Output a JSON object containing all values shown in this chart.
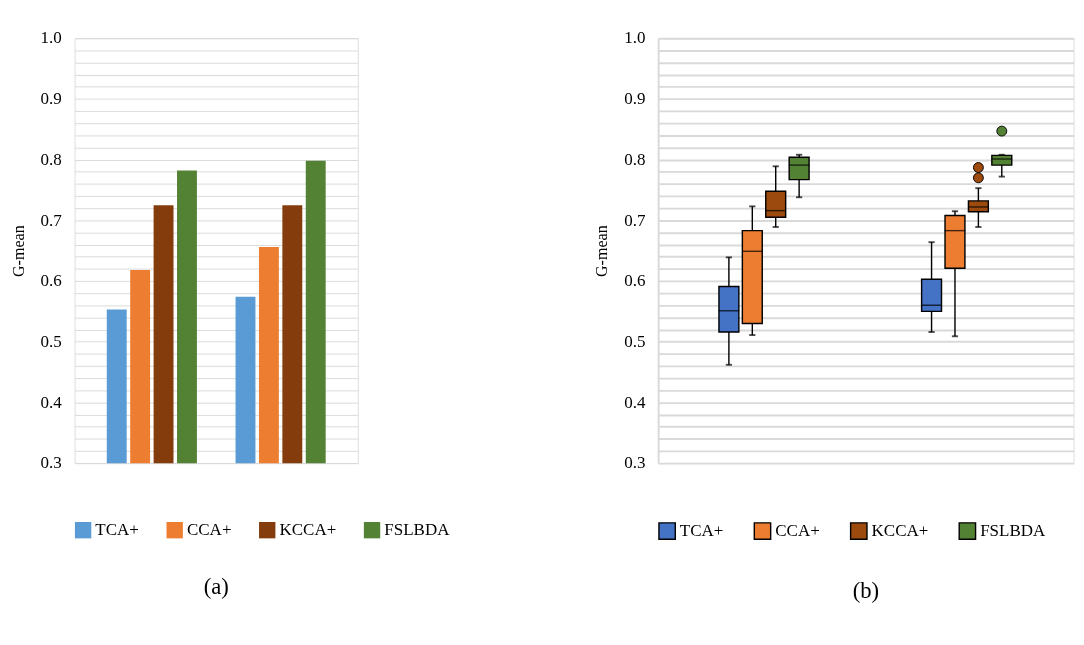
{
  "chart_data": [
    {
      "type": "bar",
      "categories": [
        null,
        null
      ],
      "ylabel": "G-mean",
      "ylim": [
        0.3,
        1.0
      ],
      "yticks": [
        0.3,
        {
          "value": 0.32,
          "label": null
        },
        {
          "value": 0.34,
          "label": null
        },
        {
          "value": 0.36,
          "label": null
        },
        {
          "value": 0.38,
          "label": null
        },
        0.4,
        {
          "value": 0.42,
          "label": null
        },
        {
          "value": 0.44,
          "label": null
        },
        {
          "value": 0.46,
          "label": null
        },
        {
          "value": 0.48,
          "label": null
        },
        0.5,
        {
          "value": 0.52,
          "label": null
        },
        {
          "value": 0.54,
          "label": null
        },
        {
          "value": 0.56,
          "label": null
        },
        {
          "value": 0.58,
          "label": null
        },
        0.6,
        {
          "value": 0.62,
          "label": null
        },
        {
          "value": 0.64,
          "label": null
        },
        {
          "value": 0.66,
          "label": null
        },
        {
          "value": 0.68,
          "label": null
        },
        0.7,
        {
          "value": 0.72,
          "label": null
        },
        {
          "value": 0.74,
          "label": null
        },
        {
          "value": 0.76,
          "label": null
        },
        {
          "value": 0.78,
          "label": null
        },
        0.8,
        {
          "value": 0.82,
          "label": null
        },
        {
          "value": 0.84,
          "label": null
        },
        {
          "value": 0.86,
          "label": null
        },
        {
          "value": 0.88,
          "label": null
        },
        0.9,
        {
          "value": 0.92,
          "label": null
        },
        {
          "value": 0.94,
          "label": null
        },
        {
          "value": 0.96,
          "label": null
        },
        {
          "value": 0.98,
          "label": null
        },
        {
          "value": 1.0,
          "label": "1.0"
        }
      ],
      "grid": "y",
      "legend": "bottom",
      "annotations": [
        "(a)"
      ],
      "series": [
        {
          "name": "TCA+",
          "color": "#5b9bd5",
          "values": [
            0.553,
            0.574
          ]
        },
        {
          "name": "CCA+",
          "color": "#ed7d31",
          "values": [
            0.618,
            0.656
          ]
        },
        {
          "name": "KCCA+",
          "color": "#843c0c",
          "values": [
            0.725,
            0.725
          ]
        },
        {
          "name": "FSLBDA",
          "color": "#548235",
          "values": [
            0.782,
            0.798
          ]
        }
      ]
    },
    {
      "type": "box",
      "categories": [
        null,
        null
      ],
      "ylabel": "G-mean",
      "ylim": [
        0.3,
        1.0
      ],
      "yticks": [
        0.3,
        {
          "value": 0.32,
          "label": null
        },
        {
          "value": 0.34,
          "label": null
        },
        {
          "value": 0.36,
          "label": null
        },
        {
          "value": 0.38,
          "label": null
        },
        0.4,
        {
          "value": 0.42,
          "label": null
        },
        {
          "value": 0.44,
          "label": null
        },
        {
          "value": 0.46,
          "label": null
        },
        {
          "value": 0.48,
          "label": null
        },
        0.5,
        {
          "value": 0.52,
          "label": null
        },
        {
          "value": 0.54,
          "label": null
        },
        {
          "value": 0.56,
          "label": null
        },
        {
          "value": 0.58,
          "label": null
        },
        0.6,
        {
          "value": 0.62,
          "label": null
        },
        {
          "value": 0.64,
          "label": null
        },
        {
          "value": 0.66,
          "label": null
        },
        {
          "value": 0.68,
          "label": null
        },
        0.7,
        {
          "value": 0.72,
          "label": null
        },
        {
          "value": 0.74,
          "label": null
        },
        {
          "value": 0.76,
          "label": null
        },
        {
          "value": 0.78,
          "label": null
        },
        0.8,
        {
          "value": 0.82,
          "label": null
        },
        {
          "value": 0.84,
          "label": null
        },
        {
          "value": 0.86,
          "label": null
        },
        {
          "value": 0.88,
          "label": null
        },
        0.9,
        {
          "value": 0.92,
          "label": null
        },
        {
          "value": 0.94,
          "label": null
        },
        {
          "value": 0.96,
          "label": null
        },
        {
          "value": 0.98,
          "label": null
        },
        {
          "value": 1.0,
          "label": "1.0"
        }
      ],
      "grid": "y",
      "legend": "bottom",
      "annotations": [
        "(b)"
      ],
      "series": [
        {
          "name": "TCA+",
          "color": "#4472c4",
          "boxes": [
            {
              "low": 0.462,
              "q1": 0.516,
              "median": 0.551,
              "q3": 0.591,
              "high": 0.639
            },
            {
              "low": 0.516,
              "q1": 0.55,
              "median": 0.56,
              "q3": 0.603,
              "high": 0.664
            }
          ]
        },
        {
          "name": "CCA+",
          "color": "#ed7d31",
          "boxes": [
            {
              "low": 0.511,
              "q1": 0.53,
              "median": 0.649,
              "q3": 0.683,
              "high": 0.723
            },
            {
              "low": 0.509,
              "q1": 0.621,
              "median": 0.683,
              "q3": 0.708,
              "high": 0.715
            }
          ]
        },
        {
          "name": "KCCA+",
          "color": "#9c4a0e",
          "boxes": [
            {
              "low": 0.689,
              "q1": 0.705,
              "median": 0.716,
              "q3": 0.748,
              "high": 0.789
            },
            {
              "low": 0.689,
              "q1": 0.714,
              "median": 0.722,
              "q3": 0.732,
              "high": 0.753,
              "outliers": [
                0.787,
                0.77
              ]
            }
          ]
        },
        {
          "name": "FSLBDA",
          "color": "#548235",
          "boxes": [
            {
              "low": 0.738,
              "q1": 0.767,
              "median": 0.791,
              "q3": 0.804,
              "high": 0.808
            },
            {
              "low": 0.772,
              "q1": 0.791,
              "median": 0.801,
              "q3": 0.807,
              "high": 0.808,
              "outliers": [
                0.847
              ]
            }
          ]
        }
      ]
    }
  ]
}
